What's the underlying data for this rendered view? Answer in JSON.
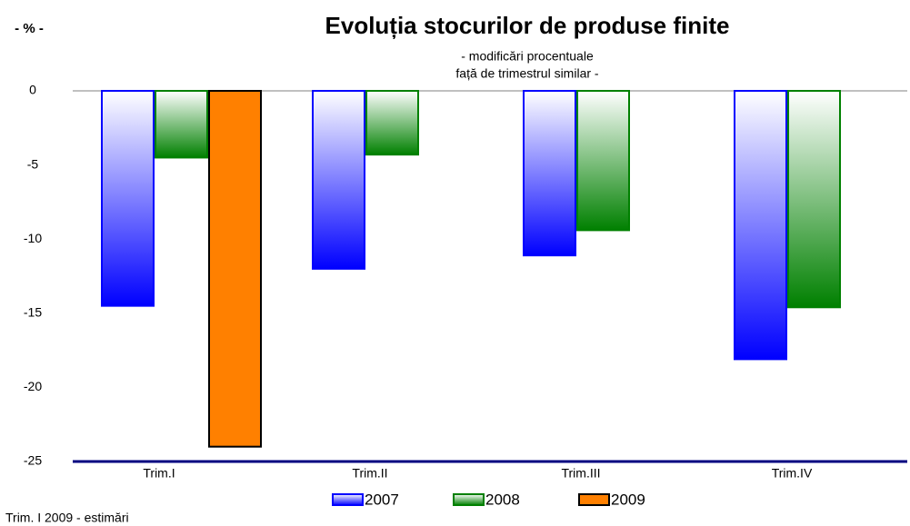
{
  "chart_data": {
    "type": "bar",
    "unit_label": "- % -",
    "title": "Evoluția stocurilor de produse finite",
    "subtitle": [
      "- modificări procentuale",
      "față de trimestrul similar -"
    ],
    "categories": [
      "Trim.I",
      "Trim.II",
      "Trim.III",
      "Trim.IV"
    ],
    "series": [
      {
        "name": "2007",
        "color": "#0000ff",
        "values": [
          -14.5,
          -12,
          -11.1,
          -18.1
        ]
      },
      {
        "name": "2008",
        "color": "#008000",
        "values": [
          -4.5,
          -4.3,
          -9.4,
          -14.6
        ]
      },
      {
        "name": "2009",
        "color": "#ff8000",
        "values": [
          -24,
          null,
          null,
          null
        ]
      }
    ],
    "ylim": [
      -25,
      0
    ],
    "yticks": [
      0,
      -5,
      -10,
      -15,
      -20,
      -25
    ],
    "note": "Trim. I 2009 - estimări"
  }
}
